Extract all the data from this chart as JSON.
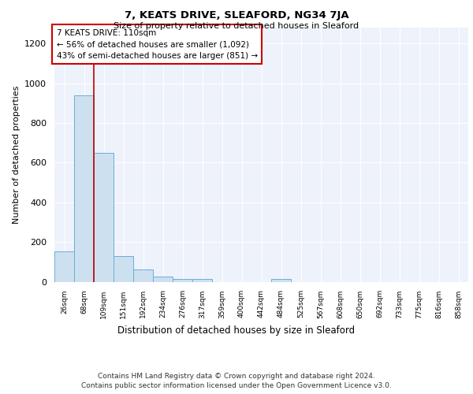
{
  "title": "7, KEATS DRIVE, SLEAFORD, NG34 7JA",
  "subtitle": "Size of property relative to detached houses in Sleaford",
  "xlabel": "Distribution of detached houses by size in Sleaford",
  "ylabel": "Number of detached properties",
  "footer_line1": "Contains HM Land Registry data © Crown copyright and database right 2024.",
  "footer_line2": "Contains public sector information licensed under the Open Government Licence v3.0.",
  "annotation_title": "7 KEATS DRIVE: 110sqm",
  "annotation_line2": "← 56% of detached houses are smaller (1,092)",
  "annotation_line3": "43% of semi-detached houses are larger (851) →",
  "bar_color": "#cde0f0",
  "bar_edge_color": "#6aaed6",
  "red_line_color": "#c00000",
  "background_color": "#eef2fb",
  "grid_color": "#ffffff",
  "categories": [
    "26sqm",
    "68sqm",
    "109sqm",
    "151sqm",
    "192sqm",
    "234sqm",
    "276sqm",
    "317sqm",
    "359sqm",
    "400sqm",
    "442sqm",
    "484sqm",
    "525sqm",
    "567sqm",
    "608sqm",
    "650sqm",
    "692sqm",
    "733sqm",
    "775sqm",
    "816sqm",
    "858sqm"
  ],
  "values": [
    153,
    940,
    650,
    130,
    60,
    25,
    13,
    13,
    0,
    0,
    0,
    13,
    0,
    0,
    0,
    0,
    0,
    0,
    0,
    0,
    0
  ],
  "ylim": [
    0,
    1280
  ],
  "yticks": [
    0,
    200,
    400,
    600,
    800,
    1000,
    1200
  ],
  "red_line_x": 1.5
}
